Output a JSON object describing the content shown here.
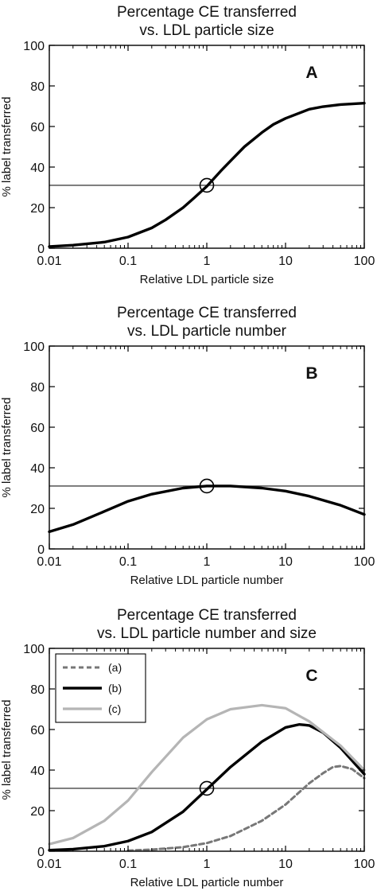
{
  "chart_data": [
    {
      "id": "A",
      "type": "line",
      "title_lines": [
        "Percentage CE transferred",
        "vs. LDL particle size"
      ],
      "panel_label": "A",
      "xlabel": "Relative LDL particle size",
      "ylabel": "% label transferred",
      "xscale": "log",
      "xlim": [
        0.01,
        100
      ],
      "ylim": [
        0,
        100
      ],
      "xticks": [
        0.01,
        0.1,
        1,
        10,
        100
      ],
      "xticklabels": [
        "0.01",
        "0.1",
        "1",
        "10",
        "100"
      ],
      "yticks": [
        0,
        20,
        40,
        60,
        80,
        100
      ],
      "yticklabels": [
        "0",
        "20",
        "40",
        "60",
        "80",
        "100"
      ],
      "reference_line_y": 31,
      "marker": {
        "x": 1,
        "y": 31,
        "style": "open-circle"
      },
      "series": [
        {
          "style": "solid-thick-black",
          "x": [
            0.01,
            0.02,
            0.05,
            0.1,
            0.2,
            0.3,
            0.5,
            0.7,
            1,
            1.5,
            2,
            3,
            5,
            7,
            10,
            20,
            30,
            50,
            100
          ],
          "y": [
            0.8,
            1.5,
            3,
            5.5,
            10,
            14,
            20,
            25,
            30.5,
            38,
            43,
            50,
            57,
            61,
            64,
            68.5,
            69.8,
            70.8,
            71.5
          ]
        }
      ]
    },
    {
      "id": "B",
      "type": "line",
      "title_lines": [
        "Percentage CE transferred",
        "vs. LDL particle number"
      ],
      "panel_label": "B",
      "xlabel": "Relative LDL particle number",
      "ylabel": "% label transferred",
      "xscale": "log",
      "xlim": [
        0.01,
        100
      ],
      "ylim": [
        0,
        100
      ],
      "xticks": [
        0.01,
        0.1,
        1,
        10,
        100
      ],
      "xticklabels": [
        "0.01",
        "0.1",
        "1",
        "10",
        "100"
      ],
      "yticks": [
        0,
        20,
        40,
        60,
        80,
        100
      ],
      "yticklabels": [
        "0",
        "20",
        "40",
        "60",
        "80",
        "100"
      ],
      "reference_line_y": 31,
      "marker": {
        "x": 1,
        "y": 31,
        "style": "open-circle"
      },
      "series": [
        {
          "style": "solid-thick-black",
          "x": [
            0.01,
            0.02,
            0.05,
            0.1,
            0.2,
            0.5,
            1,
            2,
            5,
            10,
            20,
            50,
            100
          ],
          "y": [
            8.5,
            12,
            18.5,
            23.5,
            27,
            30,
            31,
            31,
            30,
            28.5,
            26,
            21.5,
            17
          ]
        }
      ]
    },
    {
      "id": "C",
      "type": "line",
      "title_lines": [
        "Percentage CE transferred",
        "vs. LDL particle number and size"
      ],
      "panel_label": "C",
      "xlabel": "Relative LDL particle number",
      "ylabel": "% label transferred",
      "xscale": "log",
      "xlim": [
        0.01,
        100
      ],
      "ylim": [
        0,
        100
      ],
      "xticks": [
        0.01,
        0.1,
        1,
        10,
        100
      ],
      "xticklabels": [
        "0.01",
        "0.1",
        "1",
        "10",
        "100"
      ],
      "yticks": [
        0,
        20,
        40,
        60,
        80,
        100
      ],
      "yticklabels": [
        "0",
        "20",
        "40",
        "60",
        "80",
        "100"
      ],
      "reference_line_y": 31,
      "marker": {
        "x": 1,
        "y": 31,
        "style": "open-circle"
      },
      "legend": {
        "position": "top-left"
      },
      "series": [
        {
          "name": "(a)",
          "style": "dashed-gray",
          "color": "#777777",
          "x": [
            0.1,
            0.2,
            0.5,
            1,
            2,
            5,
            10,
            20,
            30,
            40,
            50,
            70,
            100
          ],
          "y": [
            0.3,
            0.8,
            2,
            4,
            7.5,
            15,
            23,
            33.5,
            38.5,
            41.5,
            42,
            40.5,
            36
          ]
        },
        {
          "name": "(b)",
          "style": "solid-thick-black",
          "color": "#000000",
          "x": [
            0.01,
            0.02,
            0.05,
            0.1,
            0.2,
            0.5,
            1,
            2,
            5,
            10,
            15,
            20,
            30,
            50,
            100
          ],
          "y": [
            0.5,
            1,
            2.5,
            5,
            9.5,
            19.5,
            30.5,
            41.5,
            54,
            61,
            62.5,
            62,
            58.5,
            51,
            38
          ]
        },
        {
          "name": "(c)",
          "style": "solid-light-gray",
          "color": "#b5b5b5",
          "x": [
            0.01,
            0.02,
            0.05,
            0.1,
            0.2,
            0.5,
            1,
            2,
            5,
            10,
            20,
            50,
            100
          ],
          "y": [
            3.5,
            6.5,
            15,
            25,
            39,
            56,
            65,
            70,
            72,
            70.5,
            64,
            52,
            40
          ]
        }
      ]
    }
  ]
}
